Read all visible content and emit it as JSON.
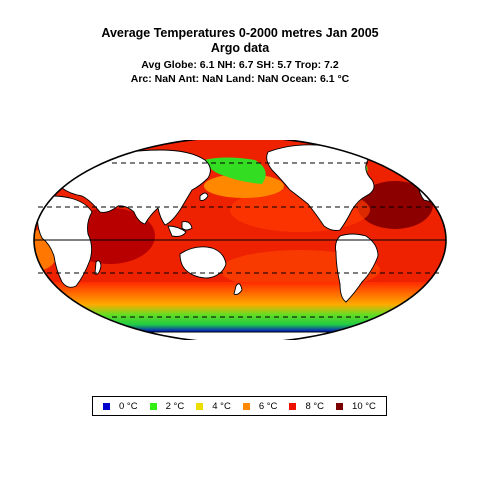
{
  "title": {
    "line1": "Average Temperatures 0-2000 metres Jan 2005",
    "line2": "Argo data",
    "stats1": "Avg Globe: 6.1  NH: 6.7  SH: 5.7  Trop: 7.2",
    "stats2": "Arc: NaN  Ant: NaN  Land: NaN Ocean: 6.1 °C"
  },
  "map": {
    "projection": "mollweide",
    "graticule": "dashed parallels at tropics and polar circles, solid equator",
    "colors": {
      "ocean_dark_red": "#9a0000",
      "ocean_red": "#ee1a00",
      "ocean_orange": "#ff6a00",
      "ocean_yellow": "#ffcc00",
      "ocean_green": "#44dd22",
      "ocean_blue": "#0010c8",
      "land": "#ffffff",
      "outline": "#000000"
    }
  },
  "legend": [
    {
      "label": "0 °C",
      "color": "#0000cd"
    },
    {
      "label": "2 °C",
      "color": "#33ee11"
    },
    {
      "label": "4 °C",
      "color": "#eedd00"
    },
    {
      "label": "6 °C",
      "color": "#ff8800"
    },
    {
      "label": "8 °C",
      "color": "#ee1100"
    },
    {
      "label": "10 °C",
      "color": "#7a0000"
    }
  ]
}
